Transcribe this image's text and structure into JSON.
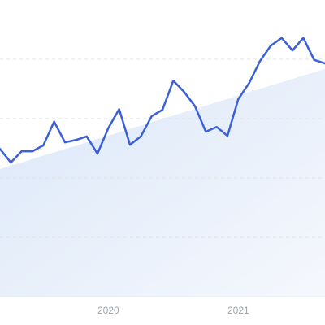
{
  "chart_data": {
    "type": "line",
    "categories": [
      null,
      null,
      null,
      null,
      null,
      null,
      null,
      null,
      null,
      null,
      "2020",
      null,
      null,
      null,
      null,
      null,
      null,
      null,
      null,
      null,
      null,
      null,
      "2021",
      null,
      null,
      null,
      null,
      null,
      null,
      null,
      null
    ],
    "series": [
      {
        "color": "#3a5fd9",
        "values": [
          2.49,
          2.26,
          2.45,
          2.45,
          2.55,
          2.95,
          2.6,
          2.64,
          2.7,
          2.41,
          2.84,
          3.16,
          2.56,
          2.7,
          3.04,
          3.15,
          3.64,
          3.45,
          3.21,
          2.78,
          2.86,
          2.71,
          3.33,
          3.6,
          3.97,
          4.23,
          4.36,
          4.15,
          4.36,
          3.99,
          3.93
        ]
      },
      {
        "color": "#dbe7f8",
        "area": true,
        "values": [
          2.15,
          2.21,
          2.26,
          2.32,
          2.38,
          2.43,
          2.49,
          2.54,
          2.6,
          2.66,
          2.71,
          2.77,
          2.83,
          2.88,
          2.94,
          3.0,
          3.05,
          3.11,
          3.16,
          3.22,
          3.28,
          3.33,
          3.39,
          3.45,
          3.5,
          3.56,
          3.61,
          3.67,
          3.73,
          3.78,
          3.84
        ]
      }
    ],
    "ylim": [
      0,
      5
    ],
    "yticks": [
      0,
      1,
      2,
      3,
      4
    ],
    "grid": true
  }
}
